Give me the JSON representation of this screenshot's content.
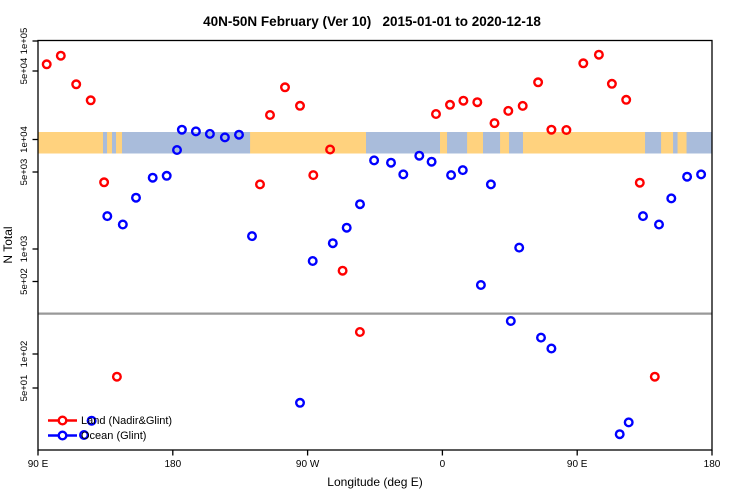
{
  "title": "40N-50N February (Ver 10)   2015-01-01 to 2020-12-18",
  "axes": {
    "y_label": "N Total",
    "x_label": "Longitude (deg E)",
    "y_ticks": [
      {
        "label": "1e+05",
        "value": 100000
      },
      {
        "label": "5e+04",
        "value": 50000
      },
      {
        "label": "1e+04",
        "value": 10000
      },
      {
        "label": "5e+03",
        "value": 5000
      },
      {
        "label": "1e+03",
        "value": 1000
      },
      {
        "label": "5e+02",
        "value": 500
      },
      {
        "label": "1e+02",
        "value": 100
      },
      {
        "label": "5e+01",
        "value": 50
      }
    ],
    "x_ticks": [
      {
        "label": "90 E",
        "pos": 0
      },
      {
        "label": "180",
        "pos": 90
      },
      {
        "label": "90 W",
        "pos": 180
      },
      {
        "label": "0",
        "pos": 270
      },
      {
        "label": "90 E",
        "pos": 360
      },
      {
        "label": "180",
        "pos": 450
      }
    ]
  },
  "legend": [
    {
      "label": "Land (Nadir&Glint)",
      "color": "#ff0000"
    },
    {
      "label": "Ocean (Glint)",
      "color": "#0000ff"
    }
  ],
  "chart_data": {
    "type": "scatter",
    "title": "40N-50N February (Ver 10)   2015-01-01 to 2020-12-18",
    "xlabel": "Longitude (deg E)",
    "ylabel": "N Total",
    "x_axis_note": "axis spans 450 deg starting at 90E (wraps: 90E,180,90W,0,90E,180); point positions given as degrees east of 90E",
    "y_scale": "log",
    "divider_line": {
      "color": "#999999",
      "at_n": 245
    },
    "map_band": {
      "ocean_color": "#a9bcdb",
      "land_color": "#ffd27e",
      "land_segments": [
        {
          "from": 0,
          "to": 43.4
        },
        {
          "from": 46.1,
          "to": 49.4
        },
        {
          "from": 52.1,
          "to": 56.1
        },
        {
          "from": 141.6,
          "to": 219.0
        },
        {
          "from": 268.4,
          "to": 273.1
        },
        {
          "from": 286.5,
          "to": 297.1
        },
        {
          "from": 308.5,
          "to": 314.5
        },
        {
          "from": 323.8,
          "to": 405.3
        },
        {
          "from": 416.0,
          "to": 424.0
        },
        {
          "from": 427.0,
          "to": 433.0
        }
      ]
    },
    "series": [
      {
        "name": "Land (Nadir&Glint)",
        "color": "#ff0000",
        "points": [
          {
            "p": 5.8,
            "n": 58400
          },
          {
            "p": 15.2,
            "n": 71200
          },
          {
            "p": 25.5,
            "n": 36600
          },
          {
            "p": 35.2,
            "n": 25100
          },
          {
            "p": 44.1,
            "n": 4030
          },
          {
            "p": 52.7,
            "n": 63
          },
          {
            "p": 148.2,
            "n": 3860
          },
          {
            "p": 154.9,
            "n": 17800
          },
          {
            "p": 164.9,
            "n": 34100
          },
          {
            "p": 174.9,
            "n": 22100
          },
          {
            "p": 183.8,
            "n": 4690
          },
          {
            "p": 195.0,
            "n": 8080
          },
          {
            "p": 203.4,
            "n": 630
          },
          {
            "p": 214.9,
            "n": 163
          },
          {
            "p": 265.7,
            "n": 18200
          },
          {
            "p": 275.1,
            "n": 22600
          },
          {
            "p": 284.0,
            "n": 24900
          },
          {
            "p": 293.3,
            "n": 24000
          },
          {
            "p": 304.8,
            "n": 14700
          },
          {
            "p": 314.0,
            "n": 19600
          },
          {
            "p": 323.6,
            "n": 22000
          },
          {
            "p": 333.9,
            "n": 38300
          },
          {
            "p": 342.8,
            "n": 12600
          },
          {
            "p": 352.8,
            "n": 12500
          },
          {
            "p": 364.1,
            "n": 59700
          },
          {
            "p": 374.5,
            "n": 72800
          },
          {
            "p": 383.2,
            "n": 37000
          },
          {
            "p": 392.7,
            "n": 25400
          },
          {
            "p": 401.8,
            "n": 4000
          },
          {
            "p": 411.8,
            "n": 63
          }
        ]
      },
      {
        "name": "Ocean (Glint)",
        "color": "#0000ff",
        "points": [
          {
            "p": 30.7,
            "n": 19.2
          },
          {
            "p": 35.8,
            "n": 25.7
          },
          {
            "p": 46.3,
            "n": 1990
          },
          {
            "p": 56.6,
            "n": 1670
          },
          {
            "p": 65.4,
            "n": 2920
          },
          {
            "p": 76.6,
            "n": 4440
          },
          {
            "p": 85.9,
            "n": 4620
          },
          {
            "p": 92.8,
            "n": 8000
          },
          {
            "p": 96.1,
            "n": 12600
          },
          {
            "p": 105.4,
            "n": 12100
          },
          {
            "p": 114.8,
            "n": 11400
          },
          {
            "p": 124.8,
            "n": 10500
          },
          {
            "p": 134.2,
            "n": 11200
          },
          {
            "p": 142.9,
            "n": 1310
          },
          {
            "p": 174.9,
            "n": 37
          },
          {
            "p": 183.4,
            "n": 774
          },
          {
            "p": 196.8,
            "n": 1130
          },
          {
            "p": 206.1,
            "n": 1560
          },
          {
            "p": 215.0,
            "n": 2550
          },
          {
            "p": 224.4,
            "n": 6410
          },
          {
            "p": 235.7,
            "n": 6100
          },
          {
            "p": 243.9,
            "n": 4760
          },
          {
            "p": 254.6,
            "n": 7080
          },
          {
            "p": 262.8,
            "n": 6230
          },
          {
            "p": 275.8,
            "n": 4690
          },
          {
            "p": 283.6,
            "n": 5210
          },
          {
            "p": 295.7,
            "n": 463
          },
          {
            "p": 302.4,
            "n": 3860
          },
          {
            "p": 315.7,
            "n": 208
          },
          {
            "p": 321.3,
            "n": 1030
          },
          {
            "p": 335.8,
            "n": 144
          },
          {
            "p": 342.8,
            "n": 113
          },
          {
            "p": 388.4,
            "n": 19.5
          },
          {
            "p": 394.4,
            "n": 24.8
          },
          {
            "p": 403.9,
            "n": 1990
          },
          {
            "p": 414.6,
            "n": 1670
          },
          {
            "p": 422.8,
            "n": 2880
          },
          {
            "p": 433.4,
            "n": 4530
          },
          {
            "p": 442.7,
            "n": 4760
          }
        ]
      }
    ]
  }
}
